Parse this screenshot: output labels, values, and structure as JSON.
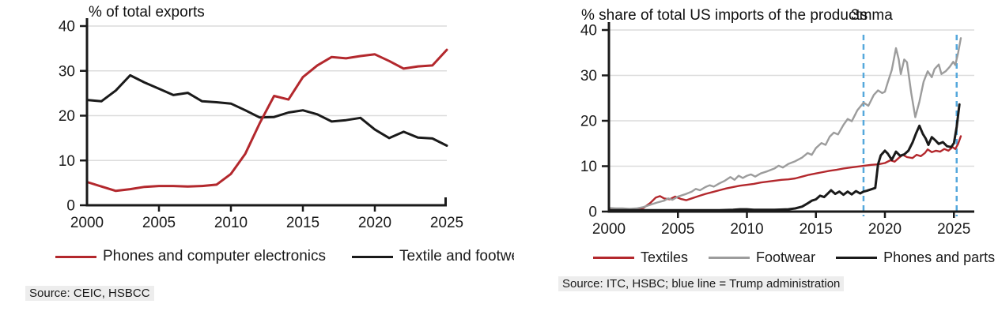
{
  "chart_data": [
    {
      "type": "line",
      "title": "% of total exports",
      "source": "Source: CEIC, HSBCC",
      "xlabel": "",
      "ylabel": "% of total exports",
      "xlim": [
        2000,
        2025
      ],
      "ylim": [
        0,
        40
      ],
      "x_ticks": [
        2000,
        2005,
        2010,
        2015,
        2020,
        2025
      ],
      "y_ticks": [
        0,
        10,
        20,
        30,
        40
      ],
      "grid": "horizontal",
      "legend_position": "bottom",
      "x": [
        2000,
        2001,
        2002,
        2003,
        2004,
        2005,
        2006,
        2007,
        2008,
        2009,
        2010,
        2011,
        2012,
        2013,
        2014,
        2015,
        2016,
        2017,
        2018,
        2019,
        2020,
        2021,
        2022,
        2023,
        2024,
        2025
      ],
      "series": [
        {
          "name": "Phones and computer electronics",
          "color": "#b3282d",
          "values": [
            5.2,
            4.2,
            3.2,
            3.6,
            4.1,
            4.3,
            4.3,
            4.2,
            4.3,
            4.6,
            7.0,
            11.5,
            18.3,
            24.4,
            23.6,
            28.6,
            31.2,
            33.1,
            32.8,
            33.3,
            33.7,
            32.2,
            30.5,
            31.0,
            31.2,
            34.7
          ]
        },
        {
          "name": "Textile and footwear",
          "color": "#1a1a1a",
          "values": [
            23.5,
            23.2,
            25.6,
            29.0,
            27.4,
            26.0,
            24.6,
            25.1,
            23.2,
            23.0,
            22.7,
            21.2,
            19.6,
            19.7,
            20.7,
            21.2,
            20.3,
            18.7,
            19.0,
            19.5,
            16.9,
            15.0,
            16.4,
            15.1,
            14.9,
            13.3
          ]
        }
      ],
      "colors": {
        "grid": "#dcdcdc",
        "axis": "#1a1a1a"
      }
    },
    {
      "type": "line",
      "title": "% share of total US imports of the products",
      "title_overlay": "3mma",
      "source": "Source: ITC, HSBC; blue line = Trump administration",
      "xlabel": "",
      "ylabel": "% share of total US imports",
      "xlim": [
        2000,
        2026
      ],
      "ylim": [
        0,
        40
      ],
      "x_ticks": [
        2000,
        2005,
        2010,
        2015,
        2020,
        2025
      ],
      "y_ticks": [
        0,
        10,
        20,
        30,
        40
      ],
      "grid": "horizontal",
      "legend_position": "bottom",
      "vlines": {
        "x": [
          2018.45,
          2025.2
        ],
        "color": "#55a8dc",
        "style": "dashed",
        "meaning": "blue line = Trump administration"
      },
      "series": [
        {
          "name": "Textiles",
          "color": "#b3282d",
          "points": [
            [
              2000,
              0.6
            ],
            [
              2000.5,
              0.5
            ],
            [
              2001,
              0.5
            ],
            [
              2001.5,
              0.4
            ],
            [
              2002,
              0.5
            ],
            [
              2002.5,
              0.8
            ],
            [
              2003,
              1.9
            ],
            [
              2003.4,
              3.1
            ],
            [
              2003.7,
              3.4
            ],
            [
              2004,
              2.9
            ],
            [
              2004.4,
              2.7
            ],
            [
              2004.8,
              3.3
            ],
            [
              2005.2,
              2.8
            ],
            [
              2005.6,
              2.5
            ],
            [
              2006,
              2.9
            ],
            [
              2006.5,
              3.4
            ],
            [
              2007,
              3.9
            ],
            [
              2007.5,
              4.3
            ],
            [
              2008,
              4.7
            ],
            [
              2008.5,
              5.1
            ],
            [
              2009,
              5.4
            ],
            [
              2009.5,
              5.7
            ],
            [
              2010,
              5.9
            ],
            [
              2010.5,
              6.1
            ],
            [
              2011,
              6.4
            ],
            [
              2011.5,
              6.6
            ],
            [
              2012,
              6.8
            ],
            [
              2012.5,
              7.0
            ],
            [
              2013,
              7.1
            ],
            [
              2013.5,
              7.3
            ],
            [
              2014,
              7.7
            ],
            [
              2014.5,
              8.1
            ],
            [
              2015,
              8.4
            ],
            [
              2015.5,
              8.7
            ],
            [
              2016,
              9.0
            ],
            [
              2016.5,
              9.2
            ],
            [
              2017,
              9.5
            ],
            [
              2017.5,
              9.7
            ],
            [
              2018,
              9.9
            ],
            [
              2018.5,
              10.1
            ],
            [
              2019,
              10.3
            ],
            [
              2019.5,
              10.4
            ],
            [
              2020,
              10.7
            ],
            [
              2020.4,
              11.3
            ],
            [
              2020.7,
              11.0
            ],
            [
              2021,
              11.8
            ],
            [
              2021.3,
              12.5
            ],
            [
              2021.6,
              12.0
            ],
            [
              2022,
              11.8
            ],
            [
              2022.3,
              12.5
            ],
            [
              2022.6,
              12.2
            ],
            [
              2022.9,
              12.9
            ],
            [
              2023.1,
              13.7
            ],
            [
              2023.4,
              13.1
            ],
            [
              2023.7,
              13.4
            ],
            [
              2024,
              13.2
            ],
            [
              2024.3,
              13.8
            ],
            [
              2024.6,
              13.4
            ],
            [
              2024.9,
              14.2
            ],
            [
              2025.1,
              13.8
            ],
            [
              2025.3,
              14.9
            ],
            [
              2025.5,
              16.6
            ]
          ]
        },
        {
          "name": "Footwear",
          "color": "#9c9c9c",
          "points": [
            [
              2000,
              0.8
            ],
            [
              2000.5,
              0.7
            ],
            [
              2001,
              0.7
            ],
            [
              2001.5,
              0.6
            ],
            [
              2002,
              0.7
            ],
            [
              2002.5,
              1.0
            ],
            [
              2003,
              1.5
            ],
            [
              2003.5,
              2.0
            ],
            [
              2004,
              2.4
            ],
            [
              2004.3,
              2.9
            ],
            [
              2004.6,
              2.6
            ],
            [
              2005,
              3.3
            ],
            [
              2005.5,
              3.8
            ],
            [
              2006,
              4.4
            ],
            [
              2006.3,
              5.0
            ],
            [
              2006.6,
              4.7
            ],
            [
              2007,
              5.4
            ],
            [
              2007.3,
              5.8
            ],
            [
              2007.6,
              5.5
            ],
            [
              2008,
              6.2
            ],
            [
              2008.4,
              6.8
            ],
            [
              2008.8,
              7.6
            ],
            [
              2009.1,
              7.0
            ],
            [
              2009.4,
              7.9
            ],
            [
              2009.7,
              7.4
            ],
            [
              2010,
              7.9
            ],
            [
              2010.3,
              8.2
            ],
            [
              2010.6,
              7.7
            ],
            [
              2011,
              8.4
            ],
            [
              2011.5,
              8.9
            ],
            [
              2012,
              9.5
            ],
            [
              2012.3,
              10.1
            ],
            [
              2012.6,
              9.7
            ],
            [
              2013,
              10.5
            ],
            [
              2013.5,
              11.1
            ],
            [
              2014,
              11.9
            ],
            [
              2014.4,
              12.9
            ],
            [
              2014.7,
              12.5
            ],
            [
              2015,
              14.0
            ],
            [
              2015.4,
              15.1
            ],
            [
              2015.7,
              14.7
            ],
            [
              2016,
              16.5
            ],
            [
              2016.3,
              17.4
            ],
            [
              2016.6,
              17.0
            ],
            [
              2017,
              19.1
            ],
            [
              2017.3,
              20.4
            ],
            [
              2017.6,
              19.9
            ],
            [
              2018,
              22.3
            ],
            [
              2018.45,
              24.0
            ],
            [
              2018.8,
              23.3
            ],
            [
              2019.2,
              25.7
            ],
            [
              2019.5,
              26.7
            ],
            [
              2019.8,
              26.1
            ],
            [
              2020,
              26.4
            ],
            [
              2020.2,
              28.4
            ],
            [
              2020.5,
              31.2
            ],
            [
              2020.8,
              36.0
            ],
            [
              2021,
              33.6
            ],
            [
              2021.15,
              30.3
            ],
            [
              2021.4,
              33.5
            ],
            [
              2021.6,
              32.9
            ],
            [
              2021.9,
              26.2
            ],
            [
              2022.2,
              20.8
            ],
            [
              2022.5,
              24.2
            ],
            [
              2022.8,
              28.6
            ],
            [
              2023.1,
              30.9
            ],
            [
              2023.4,
              29.6
            ],
            [
              2023.6,
              31.4
            ],
            [
              2023.9,
              32.4
            ],
            [
              2024.1,
              30.3
            ],
            [
              2024.4,
              30.9
            ],
            [
              2024.7,
              31.9
            ],
            [
              2024.95,
              33.0
            ],
            [
              2025.1,
              32.3
            ],
            [
              2025.3,
              34.9
            ],
            [
              2025.5,
              38.2
            ]
          ]
        },
        {
          "name": "Phones and parts",
          "color": "#1a1a1a",
          "points": [
            [
              2000,
              0.3
            ],
            [
              2001,
              0.3
            ],
            [
              2002,
              0.3
            ],
            [
              2003,
              0.3
            ],
            [
              2004,
              0.3
            ],
            [
              2005,
              0.3
            ],
            [
              2006,
              0.3
            ],
            [
              2007,
              0.3
            ],
            [
              2008,
              0.3
            ],
            [
              2009,
              0.4
            ],
            [
              2009.5,
              0.5
            ],
            [
              2010,
              0.5
            ],
            [
              2010.5,
              0.4
            ],
            [
              2011,
              0.4
            ],
            [
              2012,
              0.4
            ],
            [
              2013,
              0.5
            ],
            [
              2013.5,
              0.7
            ],
            [
              2014,
              1.1
            ],
            [
              2014.4,
              1.8
            ],
            [
              2014.7,
              2.4
            ],
            [
              2015,
              2.7
            ],
            [
              2015.3,
              3.5
            ],
            [
              2015.6,
              3.2
            ],
            [
              2015.9,
              4.1
            ],
            [
              2016.1,
              4.7
            ],
            [
              2016.4,
              3.9
            ],
            [
              2016.7,
              4.4
            ],
            [
              2017,
              3.7
            ],
            [
              2017.3,
              4.4
            ],
            [
              2017.6,
              3.8
            ],
            [
              2017.9,
              4.5
            ],
            [
              2018.2,
              4.0
            ],
            [
              2018.45,
              4.4
            ],
            [
              2018.7,
              4.6
            ],
            [
              2019,
              4.9
            ],
            [
              2019.3,
              5.2
            ],
            [
              2019.5,
              10.4
            ],
            [
              2019.7,
              12.4
            ],
            [
              2020,
              13.4
            ],
            [
              2020.2,
              12.8
            ],
            [
              2020.5,
              11.4
            ],
            [
              2020.8,
              13.2
            ],
            [
              2021.1,
              12.3
            ],
            [
              2021.4,
              12.6
            ],
            [
              2021.7,
              13.4
            ],
            [
              2022,
              15.2
            ],
            [
              2022.25,
              17.2
            ],
            [
              2022.5,
              18.9
            ],
            [
              2022.75,
              17.1
            ],
            [
              2022.95,
              16.1
            ],
            [
              2023.15,
              14.7
            ],
            [
              2023.4,
              16.4
            ],
            [
              2023.65,
              15.7
            ],
            [
              2023.9,
              14.9
            ],
            [
              2024.2,
              15.3
            ],
            [
              2024.5,
              14.4
            ],
            [
              2024.8,
              14.2
            ],
            [
              2025,
              15.1
            ],
            [
              2025.2,
              18.6
            ],
            [
              2025.4,
              23.6
            ]
          ]
        }
      ],
      "colors": {
        "grid": "#dcdcdc",
        "axis": "#1a1a1a"
      }
    }
  ]
}
